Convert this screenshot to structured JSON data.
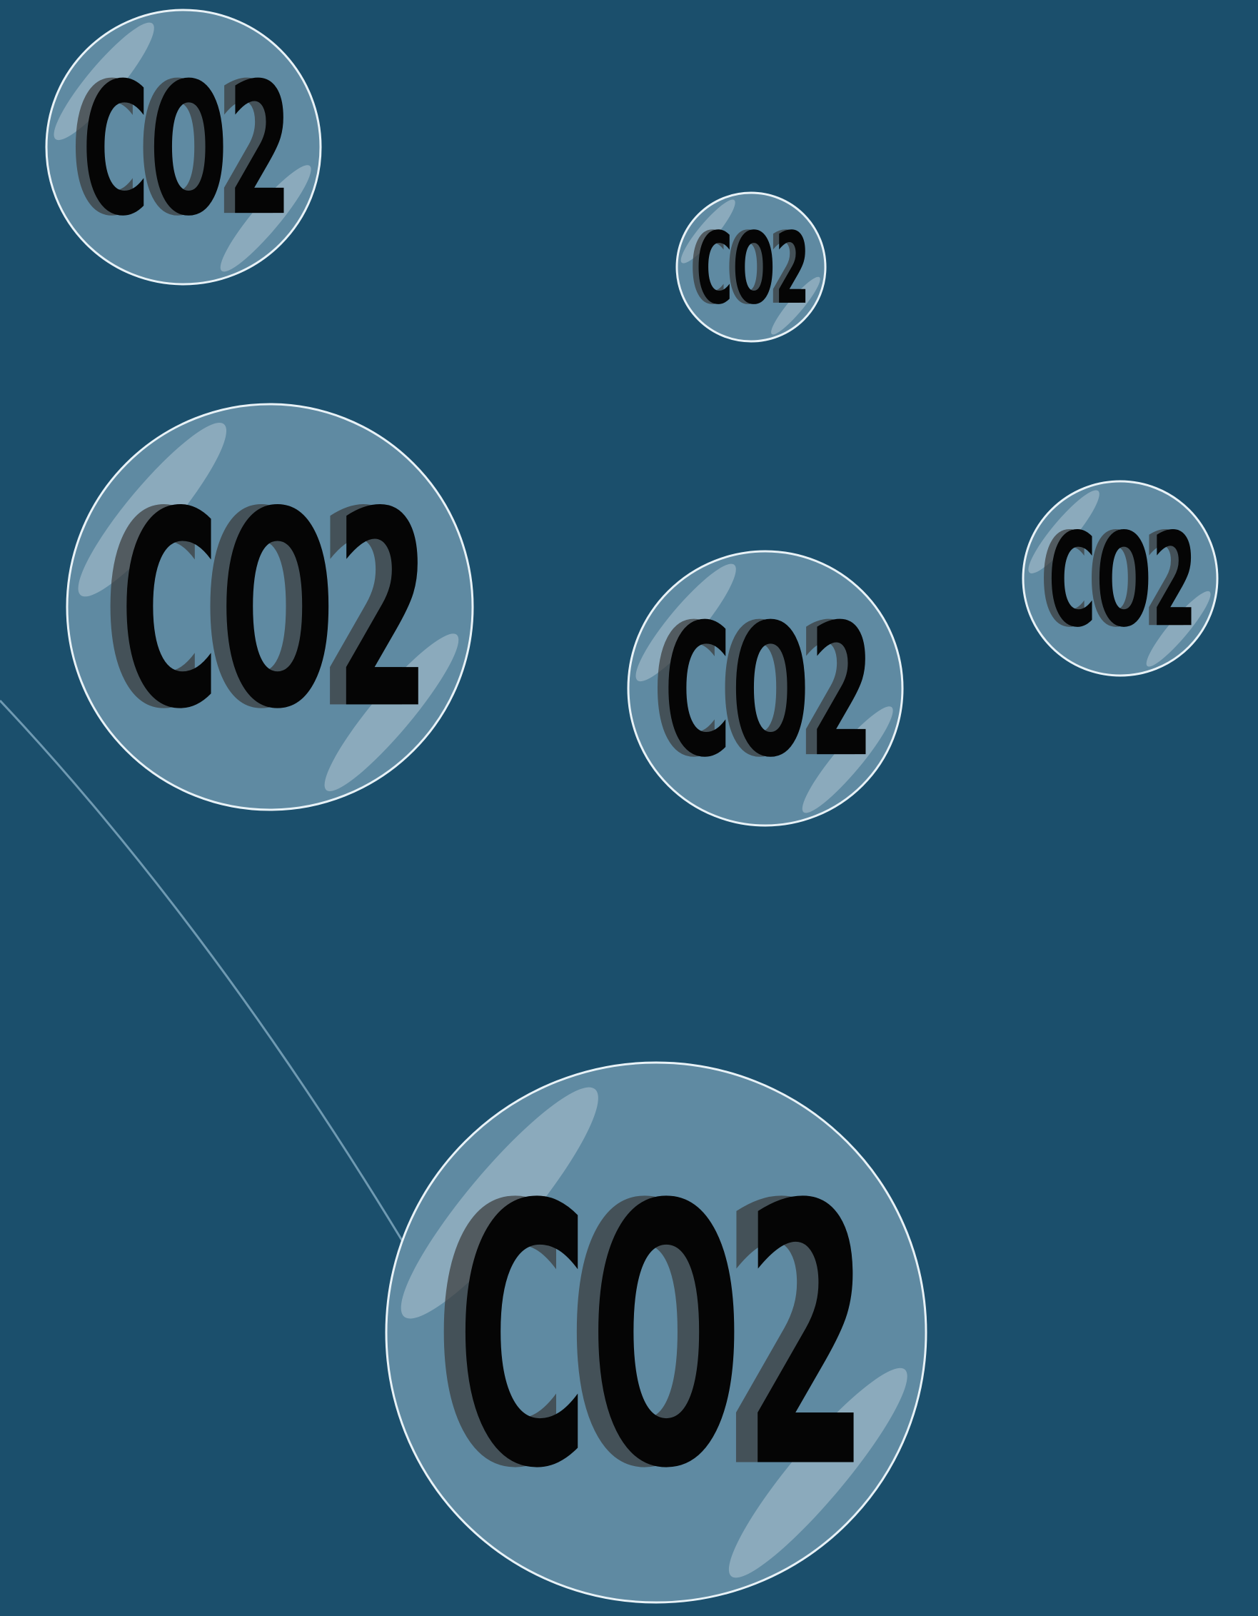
{
  "bubbles": [
    {
      "label": "CO2"
    },
    {
      "label": "CO2"
    },
    {
      "label": "CO2"
    },
    {
      "label": "CO2"
    },
    {
      "label": "CO2"
    },
    {
      "label": "CO2"
    }
  ]
}
